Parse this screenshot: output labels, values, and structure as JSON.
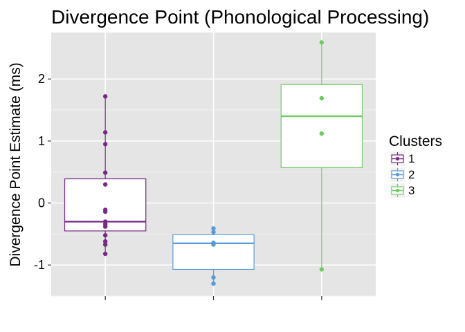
{
  "chart_data": {
    "type": "box",
    "title": "Divergence Point (Phonological Processing)",
    "xlabel": "",
    "ylabel": "Divergence Point Estimate (ms)",
    "ylim": [
      -1.5,
      2.75
    ],
    "yticks": [
      -1,
      0,
      1,
      2
    ],
    "ytick_labels": [
      "-1",
      "0",
      "1",
      "2"
    ],
    "grid": true,
    "legend": {
      "title": "Clusters",
      "position": "right"
    },
    "series": [
      {
        "name": "1",
        "color": "#762a83",
        "stats": {
          "whisker_low": -0.82,
          "q1": -0.45,
          "median": -0.3,
          "q3": 0.39,
          "whisker_high": 1.72
        },
        "points": [
          1.72,
          1.14,
          0.95,
          0.49,
          0.3,
          -0.11,
          -0.14,
          -0.3,
          -0.34,
          -0.38,
          -0.52,
          -0.62,
          -0.67,
          -0.82
        ]
      },
      {
        "name": "2",
        "color": "#5b9bd5",
        "stats": {
          "whisker_low": -1.3,
          "q1": -1.07,
          "median": -0.65,
          "q3": -0.51,
          "whisker_high": -0.41
        },
        "points": [
          -0.41,
          -0.47,
          -0.64,
          -0.67,
          -1.2,
          -1.3
        ]
      },
      {
        "name": "3",
        "color": "#6ecb63",
        "stats": {
          "whisker_low": -1.07,
          "q1": 0.57,
          "median": 1.4,
          "q3": 1.91,
          "whisker_high": 2.59
        },
        "points": [
          2.59,
          1.69,
          1.12,
          -1.07
        ]
      }
    ]
  }
}
